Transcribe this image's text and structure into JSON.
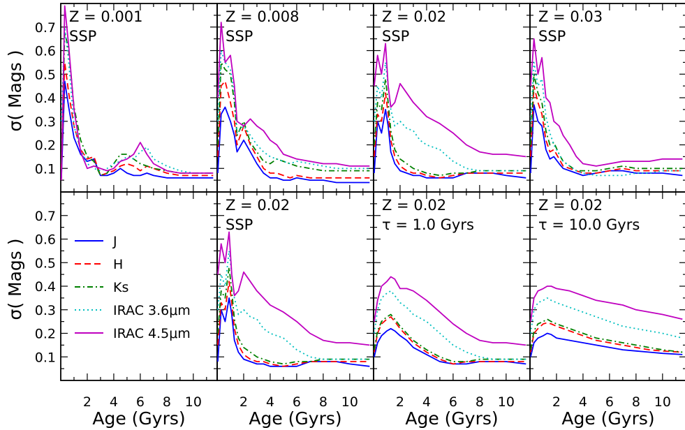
{
  "figure": {
    "ylabel": "σ( Mags )",
    "xlabel": "Age (Gyrs)",
    "x_ticks": [
      "2",
      "4",
      "6",
      "8",
      "10"
    ],
    "y_ticks": [
      "0.1",
      "0.2",
      "0.3",
      "0.4",
      "0.5",
      "0.6",
      "0.7"
    ],
    "xlim": [
      0,
      11.8
    ],
    "ylim": [
      0.0,
      0.8
    ]
  },
  "legend": {
    "placement": "lower-left panel",
    "entries": [
      {
        "label": "J",
        "color": "#0000ff",
        "style": "solid"
      },
      {
        "label": "H",
        "color": "#ff0000",
        "style": "dashed"
      },
      {
        "label": "Ks",
        "color": "#008000",
        "style": "dashdot"
      },
      {
        "label": "IRAC 3.6μm",
        "color": "#00bfbf",
        "style": "dotted"
      },
      {
        "label": "IRAC 4.5μm",
        "color": "#bf00bf",
        "style": "solid"
      }
    ]
  },
  "chart_data": [
    {
      "type": "line",
      "row": 0,
      "col": 0,
      "annotation": [
        "Z = 0.001",
        "SSP"
      ],
      "x": [
        0.05,
        0.3,
        0.6,
        1.0,
        1.5,
        2.0,
        2.5,
        3.0,
        3.5,
        4.0,
        4.5,
        5.0,
        5.5,
        6.0,
        6.5,
        7.0,
        8.0,
        9.0,
        10.0,
        11.5
      ],
      "series": [
        {
          "name": "J",
          "values": [
            0.06,
            0.47,
            0.36,
            0.23,
            0.16,
            0.13,
            0.14,
            0.07,
            0.07,
            0.08,
            0.1,
            0.08,
            0.07,
            0.07,
            0.08,
            0.07,
            0.06,
            0.06,
            0.06,
            0.06
          ]
        },
        {
          "name": "H",
          "values": [
            0.1,
            0.55,
            0.42,
            0.28,
            0.18,
            0.14,
            0.15,
            0.07,
            0.08,
            0.09,
            0.11,
            0.12,
            0.11,
            0.09,
            0.11,
            0.1,
            0.08,
            0.07,
            0.07,
            0.07
          ]
        },
        {
          "name": "Ks",
          "values": [
            0.12,
            0.68,
            0.6,
            0.36,
            0.22,
            0.15,
            0.13,
            0.07,
            0.08,
            0.12,
            0.16,
            0.16,
            0.14,
            0.12,
            0.11,
            0.1,
            0.09,
            0.08,
            0.08,
            0.08
          ]
        },
        {
          "name": "IRAC 3.6μm",
          "values": [
            0.3,
            0.7,
            0.55,
            0.28,
            0.18,
            0.12,
            0.1,
            0.09,
            0.1,
            0.12,
            0.13,
            0.15,
            0.14,
            0.17,
            0.19,
            0.14,
            0.11,
            0.09,
            0.08,
            0.08
          ]
        },
        {
          "name": "IRAC 4.5μm",
          "values": [
            0.05,
            0.79,
            0.62,
            0.35,
            0.17,
            0.1,
            0.11,
            0.1,
            0.09,
            0.1,
            0.13,
            0.14,
            0.16,
            0.21,
            0.16,
            0.12,
            0.09,
            0.08,
            0.08,
            0.08
          ]
        }
      ]
    },
    {
      "type": "line",
      "row": 0,
      "col": 1,
      "annotation": [
        "Z = 0.008",
        "SSP"
      ],
      "x": [
        0.05,
        0.3,
        0.6,
        1.0,
        1.3,
        1.5,
        2.0,
        2.5,
        3.0,
        3.5,
        4.0,
        4.5,
        5.0,
        5.5,
        6.0,
        7.0,
        8.0,
        9.0,
        10.0,
        11.5
      ],
      "series": [
        {
          "name": "J",
          "values": [
            0.08,
            0.33,
            0.36,
            0.3,
            0.24,
            0.17,
            0.22,
            0.17,
            0.12,
            0.08,
            0.06,
            0.06,
            0.05,
            0.05,
            0.06,
            0.05,
            0.05,
            0.04,
            0.04,
            0.04
          ]
        },
        {
          "name": "H",
          "values": [
            0.15,
            0.45,
            0.47,
            0.38,
            0.3,
            0.2,
            0.28,
            0.2,
            0.15,
            0.1,
            0.08,
            0.08,
            0.07,
            0.06,
            0.07,
            0.06,
            0.06,
            0.06,
            0.06,
            0.06
          ]
        },
        {
          "name": "Ks",
          "values": [
            0.2,
            0.55,
            0.52,
            0.5,
            0.38,
            0.24,
            0.3,
            0.21,
            0.17,
            0.13,
            0.12,
            0.14,
            0.13,
            0.12,
            0.11,
            0.1,
            0.09,
            0.09,
            0.09,
            0.09
          ]
        },
        {
          "name": "IRAC 3.6μm",
          "values": [
            0.3,
            0.6,
            0.55,
            0.52,
            0.42,
            0.25,
            0.28,
            0.24,
            0.2,
            0.17,
            0.15,
            0.14,
            0.13,
            0.12,
            0.13,
            0.12,
            0.11,
            0.1,
            0.1,
            0.1
          ]
        },
        {
          "name": "IRAC 4.5μm",
          "values": [
            0.4,
            0.72,
            0.55,
            0.58,
            0.45,
            0.3,
            0.28,
            0.31,
            0.28,
            0.26,
            0.22,
            0.2,
            0.16,
            0.15,
            0.14,
            0.13,
            0.12,
            0.12,
            0.11,
            0.11
          ]
        }
      ]
    },
    {
      "type": "line",
      "row": 0,
      "col": 2,
      "annotation": [
        "Z = 0.02",
        "SSP"
      ],
      "x": [
        0.05,
        0.3,
        0.6,
        0.9,
        1.1,
        1.3,
        1.6,
        2.0,
        2.5,
        3.0,
        3.5,
        4.0,
        5.0,
        6.0,
        7.0,
        8.0,
        9.0,
        10.0,
        11.5
      ],
      "series": [
        {
          "name": "J",
          "values": [
            0.08,
            0.3,
            0.25,
            0.35,
            0.28,
            0.17,
            0.12,
            0.09,
            0.08,
            0.07,
            0.07,
            0.06,
            0.06,
            0.06,
            0.08,
            0.08,
            0.08,
            0.07,
            0.06
          ]
        },
        {
          "name": "H",
          "values": [
            0.15,
            0.33,
            0.3,
            0.42,
            0.33,
            0.22,
            0.15,
            0.11,
            0.09,
            0.08,
            0.08,
            0.07,
            0.06,
            0.07,
            0.08,
            0.08,
            0.08,
            0.08,
            0.08
          ]
        },
        {
          "name": "Ks",
          "values": [
            0.2,
            0.38,
            0.35,
            0.48,
            0.38,
            0.26,
            0.18,
            0.14,
            0.12,
            0.1,
            0.09,
            0.08,
            0.07,
            0.08,
            0.08,
            0.09,
            0.09,
            0.09,
            0.09
          ]
        },
        {
          "name": "IRAC 3.6μm",
          "values": [
            0.3,
            0.45,
            0.4,
            0.55,
            0.45,
            0.35,
            0.28,
            0.3,
            0.27,
            0.26,
            0.22,
            0.2,
            0.18,
            0.13,
            0.1,
            0.09,
            0.09,
            0.09,
            0.09
          ]
        },
        {
          "name": "IRAC 4.5μm",
          "values": [
            0.45,
            0.58,
            0.5,
            0.63,
            0.45,
            0.36,
            0.38,
            0.46,
            0.42,
            0.38,
            0.35,
            0.32,
            0.29,
            0.25,
            0.2,
            0.17,
            0.16,
            0.16,
            0.15
          ]
        }
      ]
    },
    {
      "type": "line",
      "row": 0,
      "col": 3,
      "annotation": [
        "Z = 0.03",
        "SSP"
      ],
      "x": [
        0.05,
        0.3,
        0.6,
        0.9,
        1.2,
        1.5,
        1.8,
        2.2,
        2.5,
        3.0,
        3.5,
        4.0,
        5.0,
        6.0,
        7.0,
        8.0,
        9.0,
        10.0,
        11.5
      ],
      "series": [
        {
          "name": "J",
          "values": [
            0.08,
            0.37,
            0.3,
            0.28,
            0.18,
            0.14,
            0.15,
            0.12,
            0.1,
            0.09,
            0.08,
            0.07,
            0.08,
            0.09,
            0.09,
            0.08,
            0.08,
            0.08,
            0.07
          ]
        },
        {
          "name": "H",
          "values": [
            0.15,
            0.45,
            0.38,
            0.33,
            0.22,
            0.17,
            0.18,
            0.14,
            0.11,
            0.1,
            0.09,
            0.08,
            0.08,
            0.09,
            0.1,
            0.09,
            0.09,
            0.09,
            0.09
          ]
        },
        {
          "name": "Ks",
          "values": [
            0.2,
            0.5,
            0.42,
            0.38,
            0.26,
            0.2,
            0.21,
            0.16,
            0.13,
            0.11,
            0.09,
            0.09,
            0.09,
            0.1,
            0.11,
            0.1,
            0.1,
            0.1,
            0.1
          ]
        },
        {
          "name": "IRAC 3.6μm",
          "values": [
            0.3,
            0.55,
            0.45,
            0.48,
            0.32,
            0.25,
            0.2,
            0.16,
            0.13,
            0.11,
            0.09,
            0.08,
            0.07,
            0.07,
            0.07,
            0.08,
            0.08,
            0.09,
            0.09
          ]
        },
        {
          "name": "IRAC 4.5μm",
          "values": [
            0.45,
            0.65,
            0.5,
            0.57,
            0.4,
            0.38,
            0.3,
            0.28,
            0.24,
            0.2,
            0.15,
            0.12,
            0.11,
            0.12,
            0.13,
            0.13,
            0.13,
            0.14,
            0.14
          ]
        }
      ]
    },
    {
      "type": "line",
      "row": 1,
      "col": 1,
      "annotation": [
        "Z = 0.02",
        "SSP"
      ],
      "x": [
        0.05,
        0.3,
        0.6,
        0.9,
        1.1,
        1.3,
        1.6,
        2.0,
        2.5,
        3.0,
        3.5,
        4.0,
        5.0,
        6.0,
        7.0,
        8.0,
        9.0,
        10.0,
        11.5
      ],
      "series": [
        {
          "name": "J",
          "values": [
            0.08,
            0.3,
            0.25,
            0.35,
            0.28,
            0.17,
            0.12,
            0.09,
            0.08,
            0.07,
            0.07,
            0.06,
            0.06,
            0.06,
            0.08,
            0.08,
            0.08,
            0.07,
            0.06
          ]
        },
        {
          "name": "H",
          "values": [
            0.15,
            0.33,
            0.3,
            0.42,
            0.33,
            0.22,
            0.15,
            0.11,
            0.09,
            0.08,
            0.08,
            0.07,
            0.06,
            0.07,
            0.08,
            0.08,
            0.08,
            0.08,
            0.08
          ]
        },
        {
          "name": "Ks",
          "values": [
            0.2,
            0.38,
            0.35,
            0.48,
            0.38,
            0.26,
            0.18,
            0.14,
            0.12,
            0.1,
            0.09,
            0.08,
            0.07,
            0.08,
            0.08,
            0.09,
            0.09,
            0.09,
            0.09
          ]
        },
        {
          "name": "IRAC 3.6μm",
          "values": [
            0.3,
            0.45,
            0.4,
            0.55,
            0.45,
            0.35,
            0.28,
            0.3,
            0.27,
            0.26,
            0.22,
            0.2,
            0.18,
            0.13,
            0.1,
            0.09,
            0.09,
            0.09,
            0.09
          ]
        },
        {
          "name": "IRAC 4.5μm",
          "values": [
            0.45,
            0.58,
            0.5,
            0.63,
            0.45,
            0.36,
            0.38,
            0.46,
            0.42,
            0.38,
            0.35,
            0.32,
            0.29,
            0.25,
            0.2,
            0.17,
            0.16,
            0.16,
            0.15
          ]
        }
      ]
    },
    {
      "type": "line",
      "row": 1,
      "col": 2,
      "annotation": [
        "Z = 0.02",
        "τ = 1.0 Gyrs"
      ],
      "x": [
        0.05,
        0.3,
        0.6,
        1.0,
        1.3,
        1.6,
        2.0,
        2.5,
        3.0,
        4.0,
        5.0,
        6.0,
        7.0,
        8.0,
        9.0,
        10.0,
        11.5
      ],
      "series": [
        {
          "name": "J",
          "values": [
            0.1,
            0.16,
            0.19,
            0.21,
            0.22,
            0.21,
            0.19,
            0.17,
            0.14,
            0.11,
            0.08,
            0.07,
            0.07,
            0.08,
            0.08,
            0.08,
            0.07
          ]
        },
        {
          "name": "H",
          "values": [
            0.12,
            0.2,
            0.24,
            0.26,
            0.27,
            0.25,
            0.22,
            0.19,
            0.16,
            0.12,
            0.09,
            0.07,
            0.08,
            0.08,
            0.08,
            0.08,
            0.08
          ]
        },
        {
          "name": "Ks",
          "values": [
            0.13,
            0.21,
            0.25,
            0.27,
            0.28,
            0.26,
            0.23,
            0.2,
            0.17,
            0.13,
            0.1,
            0.08,
            0.08,
            0.09,
            0.09,
            0.09,
            0.09
          ]
        },
        {
          "name": "IRAC 3.6μm",
          "values": [
            0.2,
            0.3,
            0.35,
            0.37,
            0.38,
            0.36,
            0.33,
            0.31,
            0.28,
            0.25,
            0.2,
            0.15,
            0.12,
            0.1,
            0.09,
            0.09,
            0.09
          ]
        },
        {
          "name": "IRAC 4.5μm",
          "values": [
            0.25,
            0.34,
            0.4,
            0.42,
            0.44,
            0.43,
            0.39,
            0.39,
            0.38,
            0.34,
            0.29,
            0.24,
            0.2,
            0.17,
            0.16,
            0.16,
            0.15
          ]
        }
      ]
    },
    {
      "type": "line",
      "row": 1,
      "col": 3,
      "annotation": [
        "Z = 0.02",
        "τ = 10.0 Gyrs"
      ],
      "x": [
        0.05,
        0.3,
        0.6,
        1.0,
        1.3,
        1.6,
        2.0,
        3.0,
        4.0,
        5.0,
        6.0,
        7.0,
        8.0,
        9.0,
        10.0,
        11.5
      ],
      "series": [
        {
          "name": "J",
          "values": [
            0.1,
            0.16,
            0.18,
            0.19,
            0.2,
            0.195,
            0.18,
            0.17,
            0.16,
            0.15,
            0.14,
            0.13,
            0.125,
            0.12,
            0.115,
            0.11
          ]
        },
        {
          "name": "H",
          "values": [
            0.12,
            0.2,
            0.22,
            0.24,
            0.245,
            0.24,
            0.23,
            0.21,
            0.19,
            0.17,
            0.16,
            0.15,
            0.14,
            0.13,
            0.125,
            0.12
          ]
        },
        {
          "name": "Ks",
          "values": [
            0.13,
            0.21,
            0.24,
            0.25,
            0.26,
            0.25,
            0.24,
            0.22,
            0.2,
            0.18,
            0.17,
            0.16,
            0.15,
            0.14,
            0.13,
            0.12
          ]
        },
        {
          "name": "IRAC 3.6μm",
          "values": [
            0.2,
            0.3,
            0.33,
            0.34,
            0.35,
            0.34,
            0.33,
            0.31,
            0.29,
            0.27,
            0.25,
            0.23,
            0.22,
            0.21,
            0.2,
            0.18
          ]
        },
        {
          "name": "IRAC 4.5μm",
          "values": [
            0.25,
            0.35,
            0.38,
            0.39,
            0.4,
            0.4,
            0.39,
            0.38,
            0.36,
            0.34,
            0.33,
            0.32,
            0.3,
            0.29,
            0.28,
            0.26
          ]
        }
      ]
    }
  ]
}
